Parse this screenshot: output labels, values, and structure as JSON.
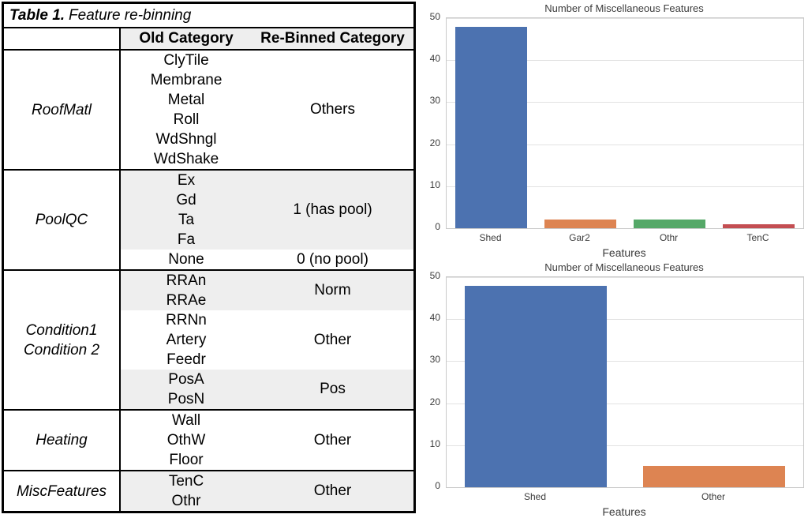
{
  "table": {
    "title": {
      "label_bold": "Table 1.",
      "label_italic": "Feature re-binning"
    },
    "header": {
      "feature": "",
      "old": "Old Category",
      "binned": "Re-Binned Category"
    },
    "shade_color": "#eeeeee",
    "groups": [
      {
        "feature_lines": [
          "RoofMatl"
        ],
        "subs": [
          {
            "old": [
              "ClyTile",
              "Membrane",
              "Metal",
              "Roll",
              "WdShngl",
              "WdShake"
            ],
            "binned": "Others",
            "shaded": false
          }
        ]
      },
      {
        "feature_lines": [
          "PoolQC"
        ],
        "subs": [
          {
            "old": [
              "Ex",
              "Gd",
              "Ta",
              "Fa"
            ],
            "binned": "1 (has pool)",
            "shaded": true
          },
          {
            "old": [
              "None"
            ],
            "binned": "0 (no pool)",
            "shaded": false
          }
        ]
      },
      {
        "feature_lines": [
          "Condition1",
          "Condition 2"
        ],
        "subs": [
          {
            "old": [
              "RRAn",
              "RRAe"
            ],
            "binned": "Norm",
            "shaded": true
          },
          {
            "old": [
              "RRNn",
              "Artery",
              "Feedr"
            ],
            "binned": "Other",
            "shaded": false
          },
          {
            "old": [
              "PosA",
              "PosN"
            ],
            "binned": "Pos",
            "shaded": true
          }
        ]
      },
      {
        "feature_lines": [
          "Heating"
        ],
        "subs": [
          {
            "old": [
              "Wall",
              "OthW",
              "Floor"
            ],
            "binned": "Other",
            "shaded": false
          }
        ]
      },
      {
        "feature_lines": [
          "MiscFeatures"
        ],
        "subs": [
          {
            "old": [
              "TenC",
              "Othr"
            ],
            "binned": "Other",
            "shaded": true
          }
        ]
      }
    ]
  },
  "chart_data": [
    {
      "type": "bar",
      "title": "Number of Miscellaneous Features",
      "xlabel": "Features",
      "ylabel": "",
      "categories": [
        "Shed",
        "Gar2",
        "Othr",
        "TenC"
      ],
      "values": [
        48,
        2,
        2,
        1
      ],
      "colors": [
        "#4c72b0",
        "#dd8452",
        "#55a868",
        "#c44e52"
      ],
      "ylim": [
        0,
        50
      ],
      "yticks": [
        0,
        10,
        20,
        30,
        40,
        50
      ],
      "grid": true,
      "legend": "none"
    },
    {
      "type": "bar",
      "title": "Number of Miscellaneous Features",
      "xlabel": "Features",
      "ylabel": "",
      "categories": [
        "Shed",
        "Other"
      ],
      "values": [
        48,
        5
      ],
      "colors": [
        "#4c72b0",
        "#dd8452"
      ],
      "ylim": [
        0,
        50
      ],
      "yticks": [
        0,
        10,
        20,
        30,
        40,
        50
      ],
      "grid": true,
      "legend": "none"
    }
  ]
}
